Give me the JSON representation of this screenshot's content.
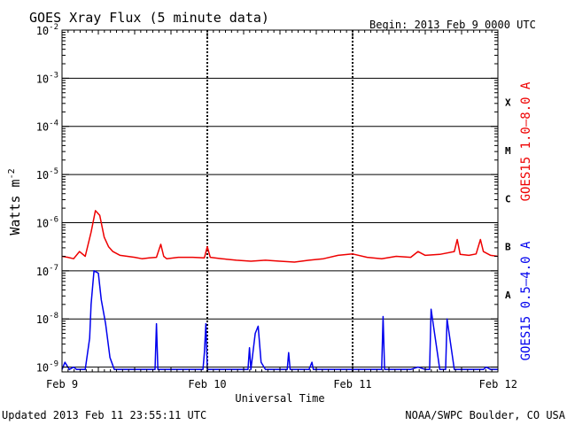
{
  "chart_data": {
    "type": "line",
    "title": "GOES Xray Flux (5 minute data)",
    "begin": "Begin:  2013 Feb 9 0000 UTC",
    "ylabel": "Watts m",
    "ylabel_exp": "-2",
    "xlabel": "Universal Time",
    "updated": "Updated 2013 Feb 11 23:55:11 UTC",
    "credit": "NOAA/SWPC Boulder, CO USA",
    "y_scale": "log",
    "ylim_log10": [
      -9.1,
      -2
    ],
    "y_ticks": [
      {
        "base": "10",
        "exp": "-2",
        "log": -2
      },
      {
        "base": "10",
        "exp": "-3",
        "log": -3
      },
      {
        "base": "10",
        "exp": "-4",
        "log": -4
      },
      {
        "base": "10",
        "exp": "-5",
        "log": -5
      },
      {
        "base": "10",
        "exp": "-6",
        "log": -6
      },
      {
        "base": "10",
        "exp": "-7",
        "log": -7
      },
      {
        "base": "10",
        "exp": "-8",
        "log": -8
      },
      {
        "base": "10",
        "exp": "-9",
        "log": -9
      }
    ],
    "x_range_days": [
      0,
      3
    ],
    "x_ticks": [
      {
        "label": "Feb 9",
        "day": 0
      },
      {
        "label": "Feb 10",
        "day": 1
      },
      {
        "label": "Feb 11",
        "day": 2
      },
      {
        "label": "Feb 12",
        "day": 3
      }
    ],
    "flare_classes": [
      {
        "label": "X",
        "log": -3.5
      },
      {
        "label": "M",
        "log": -4.5
      },
      {
        "label": "C",
        "log": -5.5
      },
      {
        "label": "B",
        "log": -6.5
      },
      {
        "label": "A",
        "log": -7.5
      }
    ],
    "series": [
      {
        "name": "GOES15 1.0–8.0 A",
        "color": "#ee0000",
        "x": [
          0,
          0.04,
          0.08,
          0.12,
          0.16,
          0.2,
          0.23,
          0.26,
          0.29,
          0.32,
          0.35,
          0.4,
          0.45,
          0.5,
          0.55,
          0.6,
          0.65,
          0.68,
          0.7,
          0.72,
          0.8,
          0.9,
          0.98,
          1.0,
          1.02,
          1.1,
          1.2,
          1.3,
          1.4,
          1.5,
          1.6,
          1.7,
          1.8,
          1.9,
          2.0,
          2.1,
          2.2,
          2.3,
          2.4,
          2.45,
          2.5,
          2.6,
          2.7,
          2.72,
          2.74,
          2.8,
          2.85,
          2.88,
          2.9,
          2.95,
          3.0
        ],
        "log_values": [
          -6.7,
          -6.72,
          -6.75,
          -6.6,
          -6.7,
          -6.2,
          -5.75,
          -5.85,
          -6.3,
          -6.5,
          -6.6,
          -6.68,
          -6.7,
          -6.72,
          -6.75,
          -6.73,
          -6.72,
          -6.45,
          -6.7,
          -6.75,
          -6.72,
          -6.72,
          -6.73,
          -6.5,
          -6.72,
          -6.75,
          -6.78,
          -6.8,
          -6.78,
          -6.8,
          -6.82,
          -6.78,
          -6.75,
          -6.68,
          -6.65,
          -6.72,
          -6.75,
          -6.7,
          -6.72,
          -6.6,
          -6.68,
          -6.66,
          -6.6,
          -6.35,
          -6.66,
          -6.68,
          -6.65,
          -6.35,
          -6.6,
          -6.68,
          -6.7
        ]
      },
      {
        "name": "GOES15 0.5–4.0 A",
        "color": "#0000ee",
        "x": [
          0,
          0.02,
          0.05,
          0.08,
          0.1,
          0.13,
          0.16,
          0.19,
          0.2,
          0.22,
          0.25,
          0.27,
          0.3,
          0.33,
          0.36,
          0.4,
          0.45,
          0.48,
          0.52,
          0.55,
          0.6,
          0.64,
          0.65,
          0.66,
          0.7,
          0.8,
          0.9,
          0.97,
          0.98,
          0.99,
          1.0,
          1.05,
          1.1,
          1.2,
          1.28,
          1.29,
          1.3,
          1.33,
          1.35,
          1.37,
          1.4,
          1.5,
          1.55,
          1.56,
          1.57,
          1.6,
          1.7,
          1.72,
          1.73,
          1.8,
          1.9,
          2.0,
          2.1,
          2.2,
          2.21,
          2.22,
          2.3,
          2.4,
          2.45,
          2.5,
          2.53,
          2.54,
          2.6,
          2.64,
          2.65,
          2.7,
          2.8,
          2.9,
          2.92,
          2.95,
          3.0
        ],
        "log_values": [
          -9.05,
          -8.9,
          -9.05,
          -9.0,
          -9.05,
          -9.05,
          -9.05,
          -8.4,
          -7.7,
          -7.0,
          -7.05,
          -7.6,
          -8.1,
          -8.8,
          -9.05,
          -9.05,
          -9.05,
          -9.05,
          -9.05,
          -9.05,
          -9.05,
          -9.05,
          -8.1,
          -9.05,
          -9.05,
          -9.05,
          -9.05,
          -9.05,
          -8.7,
          -8.1,
          -9.05,
          -9.05,
          -9.05,
          -9.05,
          -9.05,
          -8.6,
          -9.05,
          -8.3,
          -8.15,
          -8.9,
          -9.05,
          -9.05,
          -9.05,
          -8.7,
          -9.05,
          -9.05,
          -9.05,
          -8.9,
          -9.05,
          -9.05,
          -9.05,
          -9.05,
          -9.05,
          -9.05,
          -7.95,
          -9.05,
          -9.05,
          -9.05,
          -9.0,
          -9.05,
          -9.05,
          -7.8,
          -9.05,
          -9.05,
          -8.0,
          -9.05,
          -9.05,
          -9.05,
          -9.0,
          -9.05,
          -9.05
        ]
      }
    ]
  }
}
